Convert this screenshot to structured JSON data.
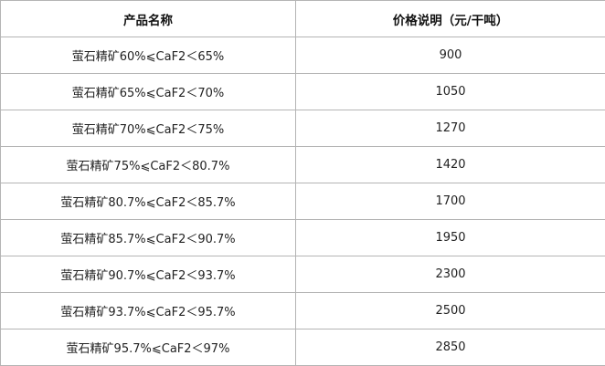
{
  "table": {
    "headers": [
      "产品名称",
      "价格说明（元/干吨）"
    ],
    "rows": [
      [
        "萤石精矿60%⩽CaF2＜65%",
        "900"
      ],
      [
        "萤石精矿65%⩽CaF2＜70%",
        "1050"
      ],
      [
        "萤石精矿70%⩽CaF2＜75%",
        "1270"
      ],
      [
        "萤石精矿75%⩽CaF2＜80.7%",
        "1420"
      ],
      [
        "萤石精矿80.7%⩽CaF2＜85.7%",
        "1700"
      ],
      [
        "萤石精矿85.7%⩽CaF2＜90.7%",
        "1950"
      ],
      [
        "萤石精矿90.7%⩽CaF2＜93.7%",
        "2300"
      ],
      [
        "萤石精矿93.7%⩽CaF2＜95.7%",
        "2500"
      ],
      [
        "萤石精矿95.7%⩽CaF2＜97%",
        "2850"
      ]
    ]
  }
}
